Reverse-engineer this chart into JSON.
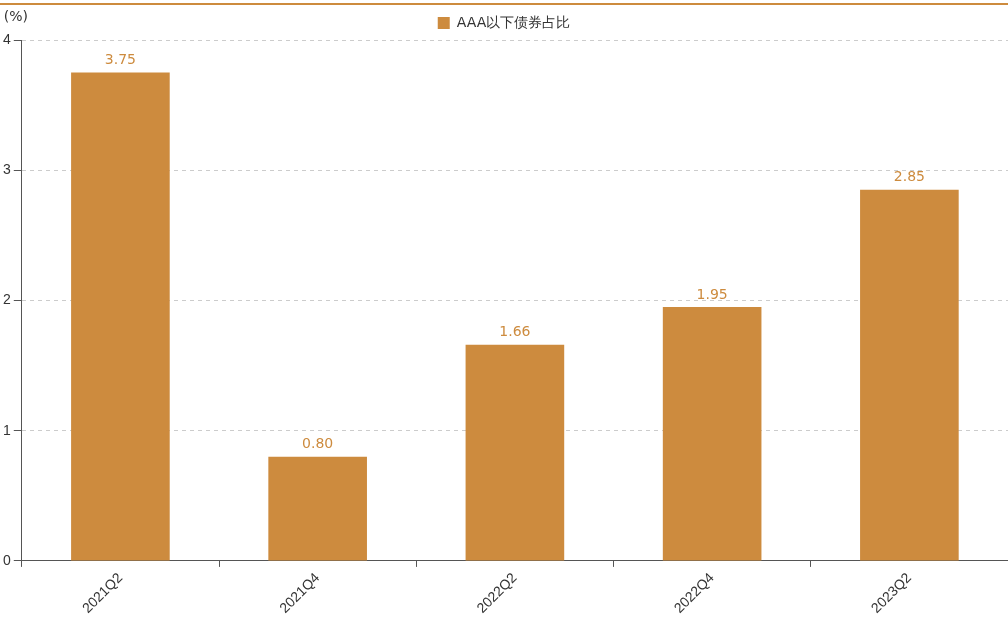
{
  "chart_data": {
    "type": "bar",
    "ylabel": "(%)",
    "categories": [
      "2021Q2",
      "2021Q4",
      "2022Q2",
      "2022Q4",
      "2023Q2"
    ],
    "series": [
      {
        "name": "AAA以下债券占比",
        "color": "#cd8b3e",
        "values": [
          3.75,
          0.8,
          1.66,
          1.95,
          2.85
        ]
      }
    ],
    "ylim": [
      0,
      4
    ],
    "yticks": [
      0,
      1,
      2,
      3,
      4
    ],
    "grid": "y",
    "legend": "top",
    "value_labels": [
      "3.75",
      "0.80",
      "1.66",
      "1.95",
      "2.85"
    ]
  }
}
